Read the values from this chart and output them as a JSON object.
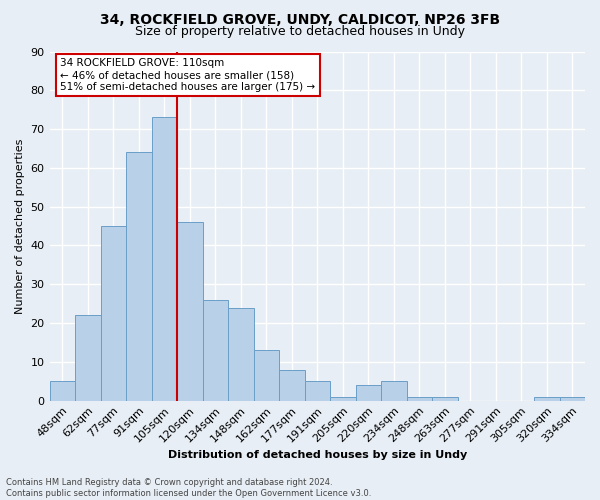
{
  "title1": "34, ROCKFIELD GROVE, UNDY, CALDICOT, NP26 3FB",
  "title2": "Size of property relative to detached houses in Undy",
  "xlabel": "Distribution of detached houses by size in Undy",
  "ylabel": "Number of detached properties",
  "categories": [
    "48sqm",
    "62sqm",
    "77sqm",
    "91sqm",
    "105sqm",
    "120sqm",
    "134sqm",
    "148sqm",
    "162sqm",
    "177sqm",
    "191sqm",
    "205sqm",
    "220sqm",
    "234sqm",
    "248sqm",
    "263sqm",
    "277sqm",
    "291sqm",
    "305sqm",
    "320sqm",
    "334sqm"
  ],
  "values": [
    5,
    22,
    45,
    64,
    73,
    46,
    26,
    24,
    13,
    8,
    5,
    1,
    4,
    5,
    1,
    1,
    0,
    0,
    0,
    1,
    1
  ],
  "bar_color": "#b8d0e8",
  "bar_edge_color": "#6a9fc8",
  "background_color": "#e8eef5",
  "grid_color": "#ffffff",
  "vline_x_index": 4.5,
  "vline_color": "#cc0000",
  "annotation_line1": "34 ROCKFIELD GROVE: 110sqm",
  "annotation_line2": "← 46% of detached houses are smaller (158)",
  "annotation_line3": "51% of semi-detached houses are larger (175) →",
  "annotation_box_color": "#ffffff",
  "annotation_box_edge": "#cc0000",
  "ylim": [
    0,
    90
  ],
  "yticks": [
    0,
    10,
    20,
    30,
    40,
    50,
    60,
    70,
    80,
    90
  ],
  "footer": "Contains HM Land Registry data © Crown copyright and database right 2024.\nContains public sector information licensed under the Open Government Licence v3.0.",
  "title1_fontsize": 10,
  "title2_fontsize": 9,
  "axis_label_fontsize": 8,
  "tick_fontsize": 8,
  "annotation_fontsize": 7.5,
  "footer_fontsize": 6
}
